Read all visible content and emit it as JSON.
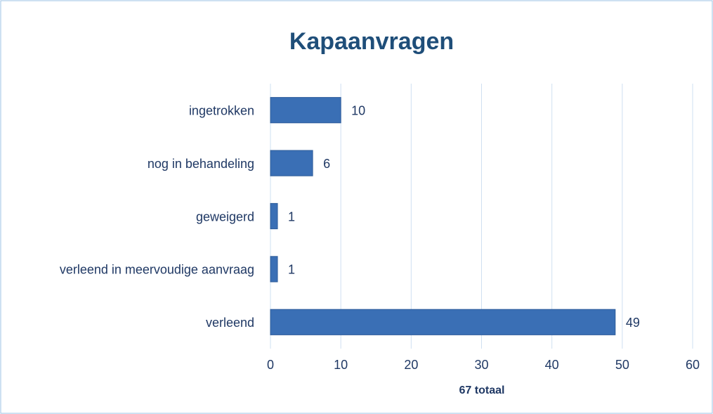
{
  "chart_data": {
    "type": "bar",
    "orientation": "horizontal",
    "title": "Kapaanvragen",
    "x_label": "67 totaal",
    "categories": [
      "ingetrokken",
      "nog in behandeling",
      "geweigerd",
      "verleend in meervoudige aanvraag",
      "verleend"
    ],
    "values": [
      10,
      6,
      1,
      1,
      49
    ],
    "color": "#3a6fb5",
    "xlim": [
      0,
      60
    ],
    "xticks": [
      0,
      10,
      20,
      30,
      40,
      50,
      60
    ],
    "grid": true
  }
}
